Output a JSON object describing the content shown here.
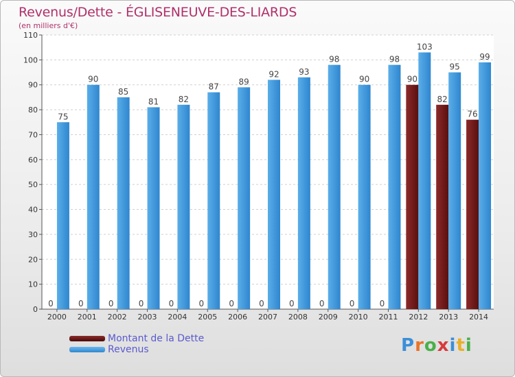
{
  "header": {
    "title": "Revenus/Dette - ÉGLISENEUVE-DES-LIARDS",
    "subtitle": "(en milliers d'€)"
  },
  "chart_data": {
    "type": "bar",
    "categories": [
      "2000",
      "2001",
      "2002",
      "2003",
      "2004",
      "2005",
      "2006",
      "2007",
      "2008",
      "2009",
      "2010",
      "2011",
      "2012",
      "2013",
      "2014"
    ],
    "series": [
      {
        "name": "Montant de la Dette",
        "color": "#6e1a1a",
        "values": [
          0,
          0,
          0,
          0,
          0,
          0,
          0,
          0,
          0,
          0,
          0,
          0,
          90,
          82,
          76
        ]
      },
      {
        "name": "Revenus",
        "color": "#4a9fe0",
        "values": [
          75,
          90,
          85,
          81,
          82,
          87,
          89,
          92,
          93,
          98,
          90,
          98,
          103,
          95,
          99
        ]
      }
    ],
    "ylim": [
      0,
      110
    ],
    "yticks": [
      0,
      10,
      20,
      30,
      40,
      50,
      60,
      70,
      80,
      90,
      100,
      110
    ],
    "grid": true,
    "legend_position": "bottom-left"
  },
  "legend": {
    "items": [
      {
        "label": "Montant de la Dette",
        "color": "#6e1a1a"
      },
      {
        "label": "Revenus",
        "color": "#4a9fe0"
      }
    ]
  },
  "logo": {
    "text": "Proxiti",
    "letter_colors": [
      "#3a8fd8",
      "#e8742a",
      "#4ab04a",
      "#d83a3a",
      "#3a8fd8",
      "#e8b02a",
      "#4ab04a"
    ]
  }
}
